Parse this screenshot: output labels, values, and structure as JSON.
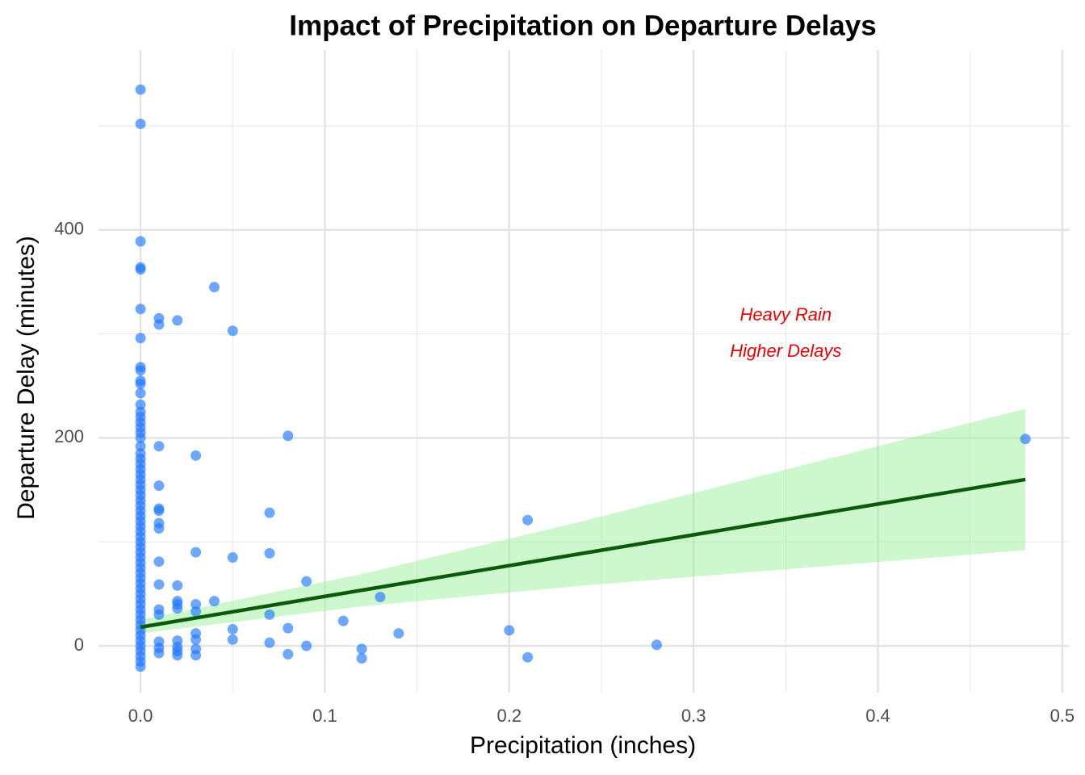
{
  "chart_data": {
    "type": "scatter",
    "title": "Impact of Precipitation on Departure Delays",
    "x_label": "Precipitation (inches)",
    "y_label": "Departure Delay (minutes)",
    "xlim": [
      -0.0228,
      0.504
    ],
    "ylim": [
      -45,
      573
    ],
    "xticks": [
      {
        "value": 0,
        "label": "0.0"
      },
      0.1,
      0.2,
      0.3,
      0.4,
      0.5
    ],
    "yticks": [
      0,
      200,
      400
    ],
    "minor_xticks": [
      0.05,
      0.15,
      0.25,
      0.35,
      0.45
    ],
    "minor_yticks": [
      100,
      300,
      500
    ],
    "grid": true,
    "series": [
      {
        "color": "#1e78ff",
        "x": [
          0,
          0,
          0,
          0,
          0,
          0,
          0,
          0,
          0,
          0,
          0,
          0,
          0,
          0,
          0,
          0,
          0,
          0,
          0,
          0,
          0,
          0,
          0,
          0,
          0,
          0,
          0,
          0,
          0,
          0,
          0,
          0,
          0,
          0,
          0,
          0,
          0,
          0,
          0,
          0,
          0,
          0,
          0,
          0,
          0,
          0,
          0,
          0,
          0,
          0,
          0,
          0,
          0,
          0,
          0,
          0,
          0,
          0,
          0,
          0,
          0,
          0,
          0.01,
          0.01,
          0.01,
          0.01,
          0.01,
          0.01,
          0.01,
          0.01,
          0.01,
          0.01,
          0.01,
          0.01,
          0.01,
          0.01,
          0.01,
          0.02,
          0.02,
          0.02,
          0.02,
          0.02,
          0.02,
          0.02,
          0.02,
          0.02,
          0.03,
          0.03,
          0.03,
          0.03,
          0.03,
          0.03,
          0.03,
          0.03,
          0.04,
          0.04,
          0.05,
          0.05,
          0.05,
          0.05,
          0.07,
          0.07,
          0.07,
          0.07,
          0.08,
          0.08,
          0.08,
          0.09,
          0.09,
          0.11,
          0.12,
          0.12,
          0.13,
          0.14,
          0.2,
          0.21,
          0.21,
          0.28,
          0.48
        ],
        "values": [
          535,
          502,
          389,
          364,
          362,
          324,
          296,
          268,
          265,
          255,
          252,
          243,
          232,
          225,
          220,
          215,
          210,
          205,
          200,
          192,
          185,
          180,
          175,
          170,
          165,
          160,
          155,
          150,
          145,
          140,
          135,
          130,
          125,
          120,
          115,
          110,
          105,
          100,
          95,
          90,
          85,
          80,
          75,
          70,
          65,
          60,
          55,
          50,
          45,
          40,
          35,
          30,
          25,
          20,
          15,
          10,
          5,
          0,
          -5,
          -10,
          -15,
          -20,
          315,
          309,
          192,
          154,
          132,
          130,
          118,
          113,
          81,
          59,
          35,
          30,
          4,
          -2,
          -7,
          313,
          58,
          43,
          40,
          36,
          5,
          -1,
          -5,
          -9,
          183,
          90,
          40,
          33,
          12,
          6,
          -3,
          -9,
          345,
          43,
          303,
          85,
          16,
          6,
          128,
          89,
          30,
          3,
          202,
          17,
          -8,
          62,
          0,
          24,
          -3,
          -12,
          47,
          12,
          15,
          121,
          -11,
          1,
          199
        ]
      }
    ],
    "fit": {
      "color": "#0b5a0b",
      "band_color": "#90ee90",
      "x": [
        0,
        0.12,
        0.24,
        0.36,
        0.48
      ],
      "values": [
        18,
        53.5,
        89,
        124.6,
        160
      ],
      "lower": [
        12,
        38,
        58,
        75,
        92
      ],
      "upper": [
        25,
        69,
        120,
        174,
        228
      ]
    },
    "annotation": {
      "lines": [
        "Heavy Rain",
        "Higher Delays"
      ],
      "x": 0.35,
      "y": 300,
      "color": "#ee0000"
    }
  }
}
